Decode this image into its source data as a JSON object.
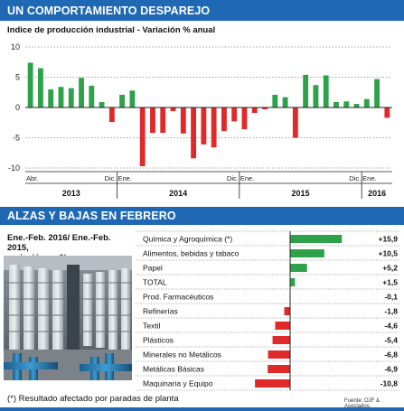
{
  "header": {
    "title": "UN COMPORTAMIENTO DESPAREJO"
  },
  "section2": {
    "title": "ALZAS Y BAJAS EN FEBRERO"
  },
  "left_caption": {
    "line1": "Ene.-Feb. 2016/ Ene.-Feb. 2015,",
    "line2": "variación en %"
  },
  "footnote": "(*) Resultado afectado por paradas de planta",
  "source": "Fuente: OJF & Asociados.",
  "colors": {
    "positive": "#2ea24a",
    "negative": "#e02a2a",
    "accent": "#1f68b3"
  },
  "photo": {
    "description_icon": "industrial-plant-photo"
  },
  "chart_data": [
    {
      "type": "bar",
      "title": "Indice de producción industrial - Variación % anual",
      "ylim": [
        -10,
        10
      ],
      "yticks": [
        10,
        5,
        0,
        -5,
        -10
      ],
      "values": [
        7.4,
        6.5,
        3.0,
        3.4,
        3.2,
        4.9,
        3.6,
        0.9,
        -2.4,
        2.1,
        2.8,
        -9.7,
        -4.2,
        -4.2,
        -0.6,
        -4.3,
        -8.4,
        -6.1,
        -6.6,
        -3.9,
        -2.3,
        -3.6,
        -0.9,
        -0.3,
        2.1,
        1.7,
        -5.0,
        5.4,
        3.7,
        5.3,
        0.9,
        1.0,
        0.6,
        1.4,
        4.7,
        -1.7
      ],
      "month_labels": [
        {
          "index": 0,
          "text": "Abr."
        },
        {
          "index": 8,
          "text": "Dic."
        },
        {
          "index": 9,
          "text": "Ene."
        },
        {
          "index": 20,
          "text": "Dic."
        },
        {
          "index": 21,
          "text": "Ene."
        },
        {
          "index": 32,
          "text": "Dic."
        },
        {
          "index": 33,
          "text": "Ene."
        }
      ],
      "years": [
        {
          "label": "2013",
          "start": 0,
          "end": 8
        },
        {
          "label": "2014",
          "start": 9,
          "end": 20
        },
        {
          "label": "2015",
          "start": 21,
          "end": 32
        },
        {
          "label": "2016",
          "start": 33,
          "end": 35
        }
      ]
    },
    {
      "type": "bar",
      "orientation": "horizontal",
      "categories": [
        "Química y Agroquímica (*)",
        "Alimentos, bebidas y tabaco",
        "Papel",
        "TOTAL",
        "Prod. Farmacéuticos",
        "Refinerías",
        "Textil",
        "Plásticos",
        "Minerales no Metálicos",
        "Metálicas Básicas",
        "Maquinaria y Equipo"
      ],
      "values": [
        15.9,
        10.5,
        5.2,
        1.5,
        -0.1,
        -1.8,
        -4.6,
        -5.4,
        -6.8,
        -6.9,
        -10.8
      ],
      "value_labels": [
        "+15,9",
        "+10,5",
        "+5,2",
        "+1,5",
        "-0,1",
        "-1,8",
        "-4,6",
        "-5,4",
        "-6,8",
        "-6,9",
        "-10,8"
      ],
      "xlim": [
        -15,
        20
      ],
      "xticks": [
        -15,
        -10,
        -5,
        0,
        5,
        10,
        15,
        20
      ]
    }
  ]
}
